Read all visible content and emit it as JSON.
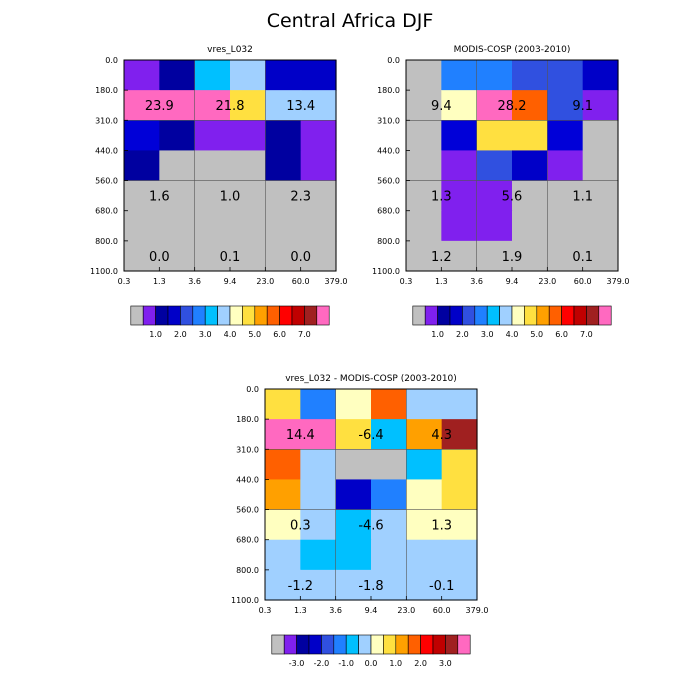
{
  "figure_title": "Central Africa DJF",
  "chart_data": [
    {
      "type": "heatmap",
      "title": "vres_L032",
      "x_ticks": [
        "0.3",
        "1.3",
        "3.6",
        "9.4",
        "23.0",
        "60.0",
        "379.0"
      ],
      "y_ticks": [
        "0.0",
        "180.0",
        "310.0",
        "440.0",
        "560.0",
        "680.0",
        "800.0",
        "1100.0"
      ],
      "grid": true,
      "cells": [
        [
          "#8020ee",
          "#0000a0",
          "#00c0ff",
          "#a0d0ff",
          "#0000c8",
          "#0000c8"
        ],
        [
          "#ff69c0",
          "#ff69c0",
          "#ff69c0",
          "#ffe040",
          "#a0d0ff",
          "#a0d0ff"
        ],
        [
          "#0000d8",
          "#0000a0",
          "#8020ee",
          "#8020ee",
          "#0000a0",
          "#8020ee"
        ],
        [
          "#0000a0",
          "#c0c0c0",
          "#c0c0c0",
          "#c0c0c0",
          "#0000a0",
          "#8020ee"
        ],
        [
          "#c0c0c0",
          "#c0c0c0",
          "#c0c0c0",
          "#c0c0c0",
          "#c0c0c0",
          "#c0c0c0"
        ],
        [
          "#c0c0c0",
          "#c0c0c0",
          "#c0c0c0",
          "#c0c0c0",
          "#c0c0c0",
          "#c0c0c0"
        ],
        [
          "#c0c0c0",
          "#c0c0c0",
          "#c0c0c0",
          "#c0c0c0",
          "#c0c0c0",
          "#c0c0c0"
        ]
      ],
      "annotations": [
        {
          "text": "23.9",
          "row": 1,
          "col": 0
        },
        {
          "text": "21.8",
          "row": 1,
          "col": 2
        },
        {
          "text": "13.4",
          "row": 1,
          "col": 4
        },
        {
          "text": "1.6",
          "row": 4,
          "col": 0
        },
        {
          "text": "1.0",
          "row": 4,
          "col": 2
        },
        {
          "text": "2.3",
          "row": 4,
          "col": 4
        },
        {
          "text": "0.0",
          "row": 6,
          "col": 0
        },
        {
          "text": "0.1",
          "row": 6,
          "col": 2
        },
        {
          "text": "0.0",
          "row": 6,
          "col": 4
        }
      ],
      "colorbar": {
        "colors": [
          "#c0c0c0",
          "#8020ee",
          "#0000a0",
          "#0000c8",
          "#3050e0",
          "#2080ff",
          "#00c0ff",
          "#a0d0ff",
          "#ffffc0",
          "#ffe040",
          "#ffa000",
          "#ff6000",
          "#ff0000",
          "#c00000",
          "#a02020",
          "#ff69c0"
        ],
        "labels": [
          "1.0",
          "2.0",
          "3.0",
          "4.0",
          "5.0",
          "6.0",
          "7.0"
        ]
      }
    },
    {
      "type": "heatmap",
      "title": "MODIS-COSP (2003-2010)",
      "x_ticks": [
        "0.3",
        "1.3",
        "3.6",
        "9.4",
        "23.0",
        "60.0",
        "379.0"
      ],
      "y_ticks": [
        "0.0",
        "180.0",
        "310.0",
        "440.0",
        "560.0",
        "680.0",
        "800.0",
        "1100.0"
      ],
      "grid": true,
      "cells": [
        [
          "#c0c0c0",
          "#2080ff",
          "#2080ff",
          "#3050e0",
          "#3050e0",
          "#0000c8"
        ],
        [
          "#c0c0c0",
          "#ffffc0",
          "#ff69c0",
          "#ff6000",
          "#3050e0",
          "#8020ee"
        ],
        [
          "#c0c0c0",
          "#0000d8",
          "#ffe040",
          "#ffe040",
          "#0000d8",
          "#c0c0c0"
        ],
        [
          "#c0c0c0",
          "#8020ee",
          "#3050e0",
          "#0000c8",
          "#8020ee",
          "#c0c0c0"
        ],
        [
          "#c0c0c0",
          "#8020ee",
          "#8020ee",
          "#c0c0c0",
          "#c0c0c0",
          "#c0c0c0"
        ],
        [
          "#c0c0c0",
          "#8020ee",
          "#8020ee",
          "#c0c0c0",
          "#c0c0c0",
          "#c0c0c0"
        ],
        [
          "#c0c0c0",
          "#c0c0c0",
          "#c0c0c0",
          "#c0c0c0",
          "#c0c0c0",
          "#c0c0c0"
        ]
      ],
      "annotations": [
        {
          "text": "9.4",
          "row": 1,
          "col": 0
        },
        {
          "text": "28.2",
          "row": 1,
          "col": 2
        },
        {
          "text": "9.1",
          "row": 1,
          "col": 4
        },
        {
          "text": "1.3",
          "row": 4,
          "col": 0
        },
        {
          "text": "5.6",
          "row": 4,
          "col": 2
        },
        {
          "text": "1.1",
          "row": 4,
          "col": 4
        },
        {
          "text": "1.2",
          "row": 6,
          "col": 0
        },
        {
          "text": "1.9",
          "row": 6,
          "col": 2
        },
        {
          "text": "0.1",
          "row": 6,
          "col": 4
        }
      ],
      "colorbar": {
        "colors": [
          "#c0c0c0",
          "#8020ee",
          "#0000a0",
          "#0000c8",
          "#3050e0",
          "#2080ff",
          "#00c0ff",
          "#a0d0ff",
          "#ffffc0",
          "#ffe040",
          "#ffa000",
          "#ff6000",
          "#ff0000",
          "#c00000",
          "#a02020",
          "#ff69c0"
        ],
        "labels": [
          "1.0",
          "2.0",
          "3.0",
          "4.0",
          "5.0",
          "6.0",
          "7.0"
        ]
      }
    },
    {
      "type": "heatmap",
      "title": "vres_L032 - MODIS-COSP (2003-2010)",
      "x_ticks": [
        "0.3",
        "1.3",
        "3.6",
        "9.4",
        "23.0",
        "60.0",
        "379.0"
      ],
      "y_ticks": [
        "0.0",
        "180.0",
        "310.0",
        "440.0",
        "560.0",
        "680.0",
        "800.0",
        "1100.0"
      ],
      "grid": true,
      "cells": [
        [
          "#ffe040",
          "#2080ff",
          "#ffffc0",
          "#ff6000",
          "#a0d0ff",
          "#a0d0ff"
        ],
        [
          "#ff69c0",
          "#ff69c0",
          "#ffe040",
          "#00c0ff",
          "#ffa000",
          "#a02020"
        ],
        [
          "#ff6000",
          "#a0d0ff",
          "#c0c0c0",
          "#c0c0c0",
          "#00c0ff",
          "#ffe040"
        ],
        [
          "#ffa000",
          "#a0d0ff",
          "#0000c8",
          "#2080ff",
          "#ffffc0",
          "#ffe040"
        ],
        [
          "#ffffc0",
          "#a0d0ff",
          "#00c0ff",
          "#a0d0ff",
          "#ffffc0",
          "#ffffc0"
        ],
        [
          "#a0d0ff",
          "#00c0ff",
          "#00c0ff",
          "#a0d0ff",
          "#a0d0ff",
          "#a0d0ff"
        ],
        [
          "#a0d0ff",
          "#a0d0ff",
          "#a0d0ff",
          "#a0d0ff",
          "#a0d0ff",
          "#a0d0ff"
        ]
      ],
      "annotations": [
        {
          "text": "14.4",
          "row": 1,
          "col": 0
        },
        {
          "text": "-6.4",
          "row": 1,
          "col": 2
        },
        {
          "text": "4.3",
          "row": 1,
          "col": 4
        },
        {
          "text": "0.3",
          "row": 4,
          "col": 0
        },
        {
          "text": "-4.6",
          "row": 4,
          "col": 2
        },
        {
          "text": "1.3",
          "row": 4,
          "col": 4
        },
        {
          "text": "-1.2",
          "row": 6,
          "col": 0
        },
        {
          "text": "-1.8",
          "row": 6,
          "col": 2
        },
        {
          "text": "-0.1",
          "row": 6,
          "col": 4
        }
      ],
      "colorbar": {
        "colors": [
          "#c0c0c0",
          "#8020ee",
          "#0000a0",
          "#0000c8",
          "#3050e0",
          "#2080ff",
          "#00c0ff",
          "#a0d0ff",
          "#ffffc0",
          "#ffe040",
          "#ffa000",
          "#ff6000",
          "#ff0000",
          "#c00000",
          "#a02020",
          "#ff69c0"
        ],
        "labels": [
          "-3.0",
          "-2.0",
          "-1.0",
          "0.0",
          "1.0",
          "2.0",
          "3.0"
        ]
      }
    }
  ]
}
